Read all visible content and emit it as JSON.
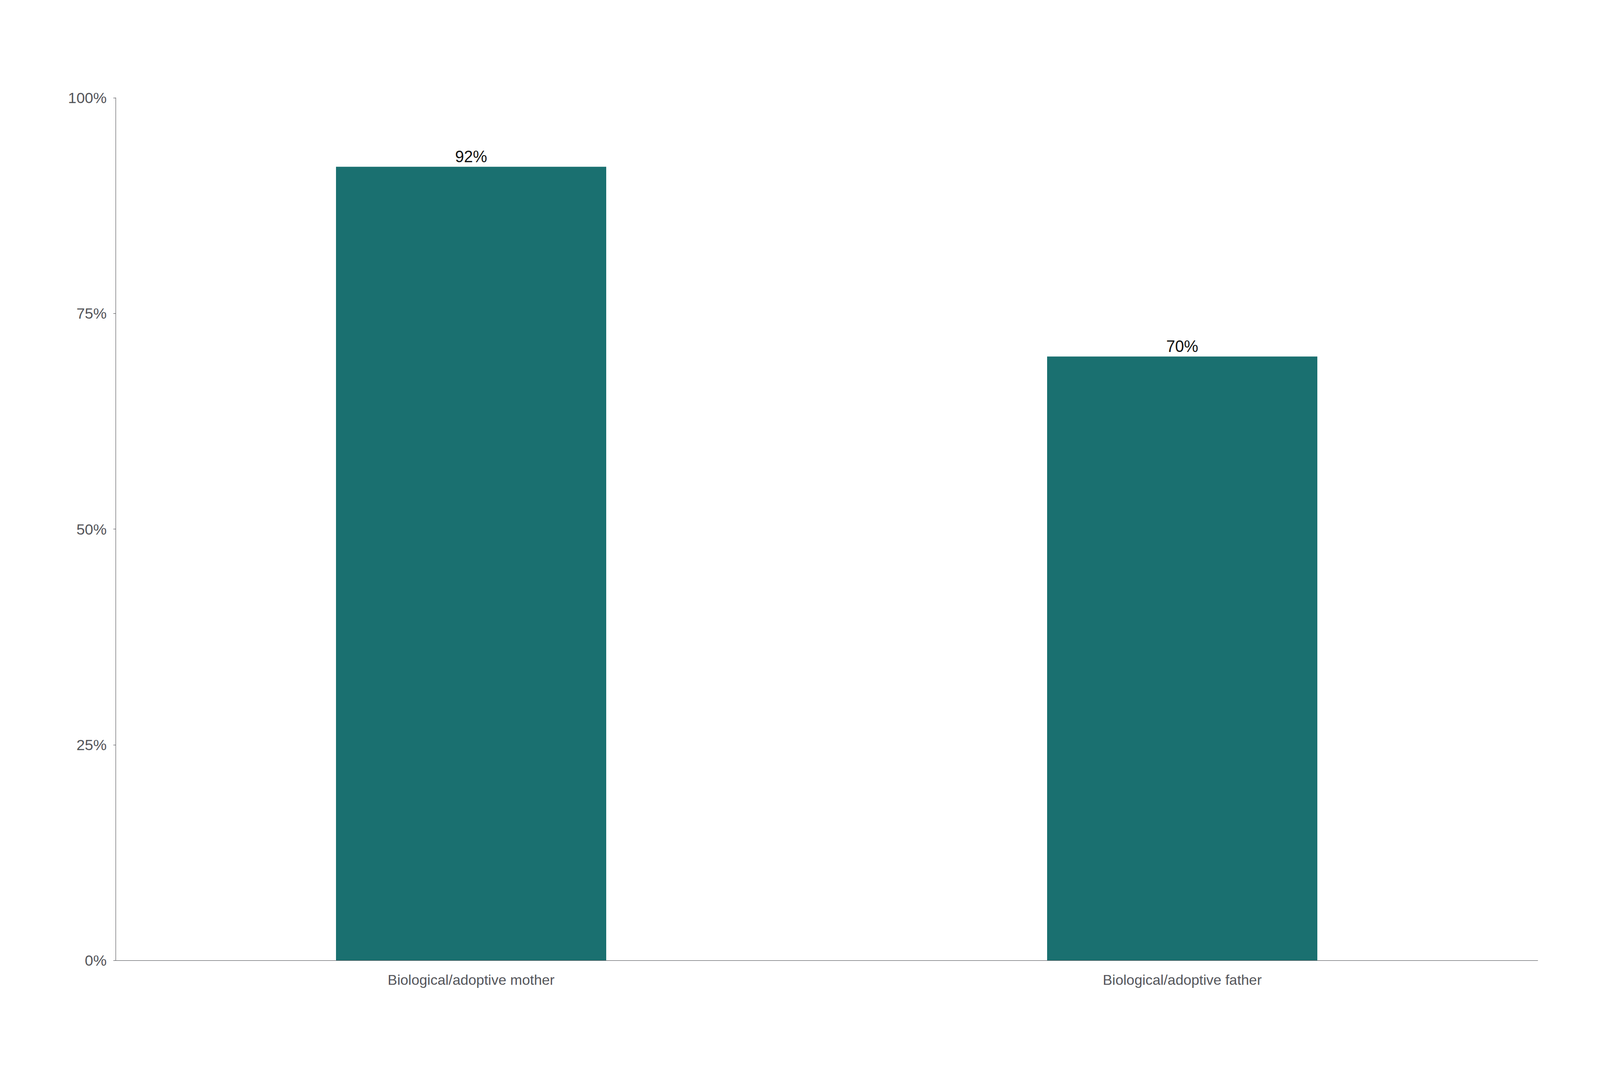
{
  "chart_data": {
    "type": "bar",
    "categories": [
      "Biological/adoptive mother",
      "Biological/adoptive father"
    ],
    "values": [
      92,
      70
    ],
    "value_labels": [
      "92%",
      "70%"
    ],
    "color": "#1a7070",
    "ylim": [
      0,
      100
    ],
    "yticks": [
      {
        "value": 0,
        "label": "0%"
      },
      {
        "value": 25,
        "label": "25%"
      },
      {
        "value": 50,
        "label": "50%"
      },
      {
        "value": 75,
        "label": "75%"
      },
      {
        "value": 100,
        "label": "100%"
      }
    ],
    "grid": false,
    "data_labels": true
  }
}
